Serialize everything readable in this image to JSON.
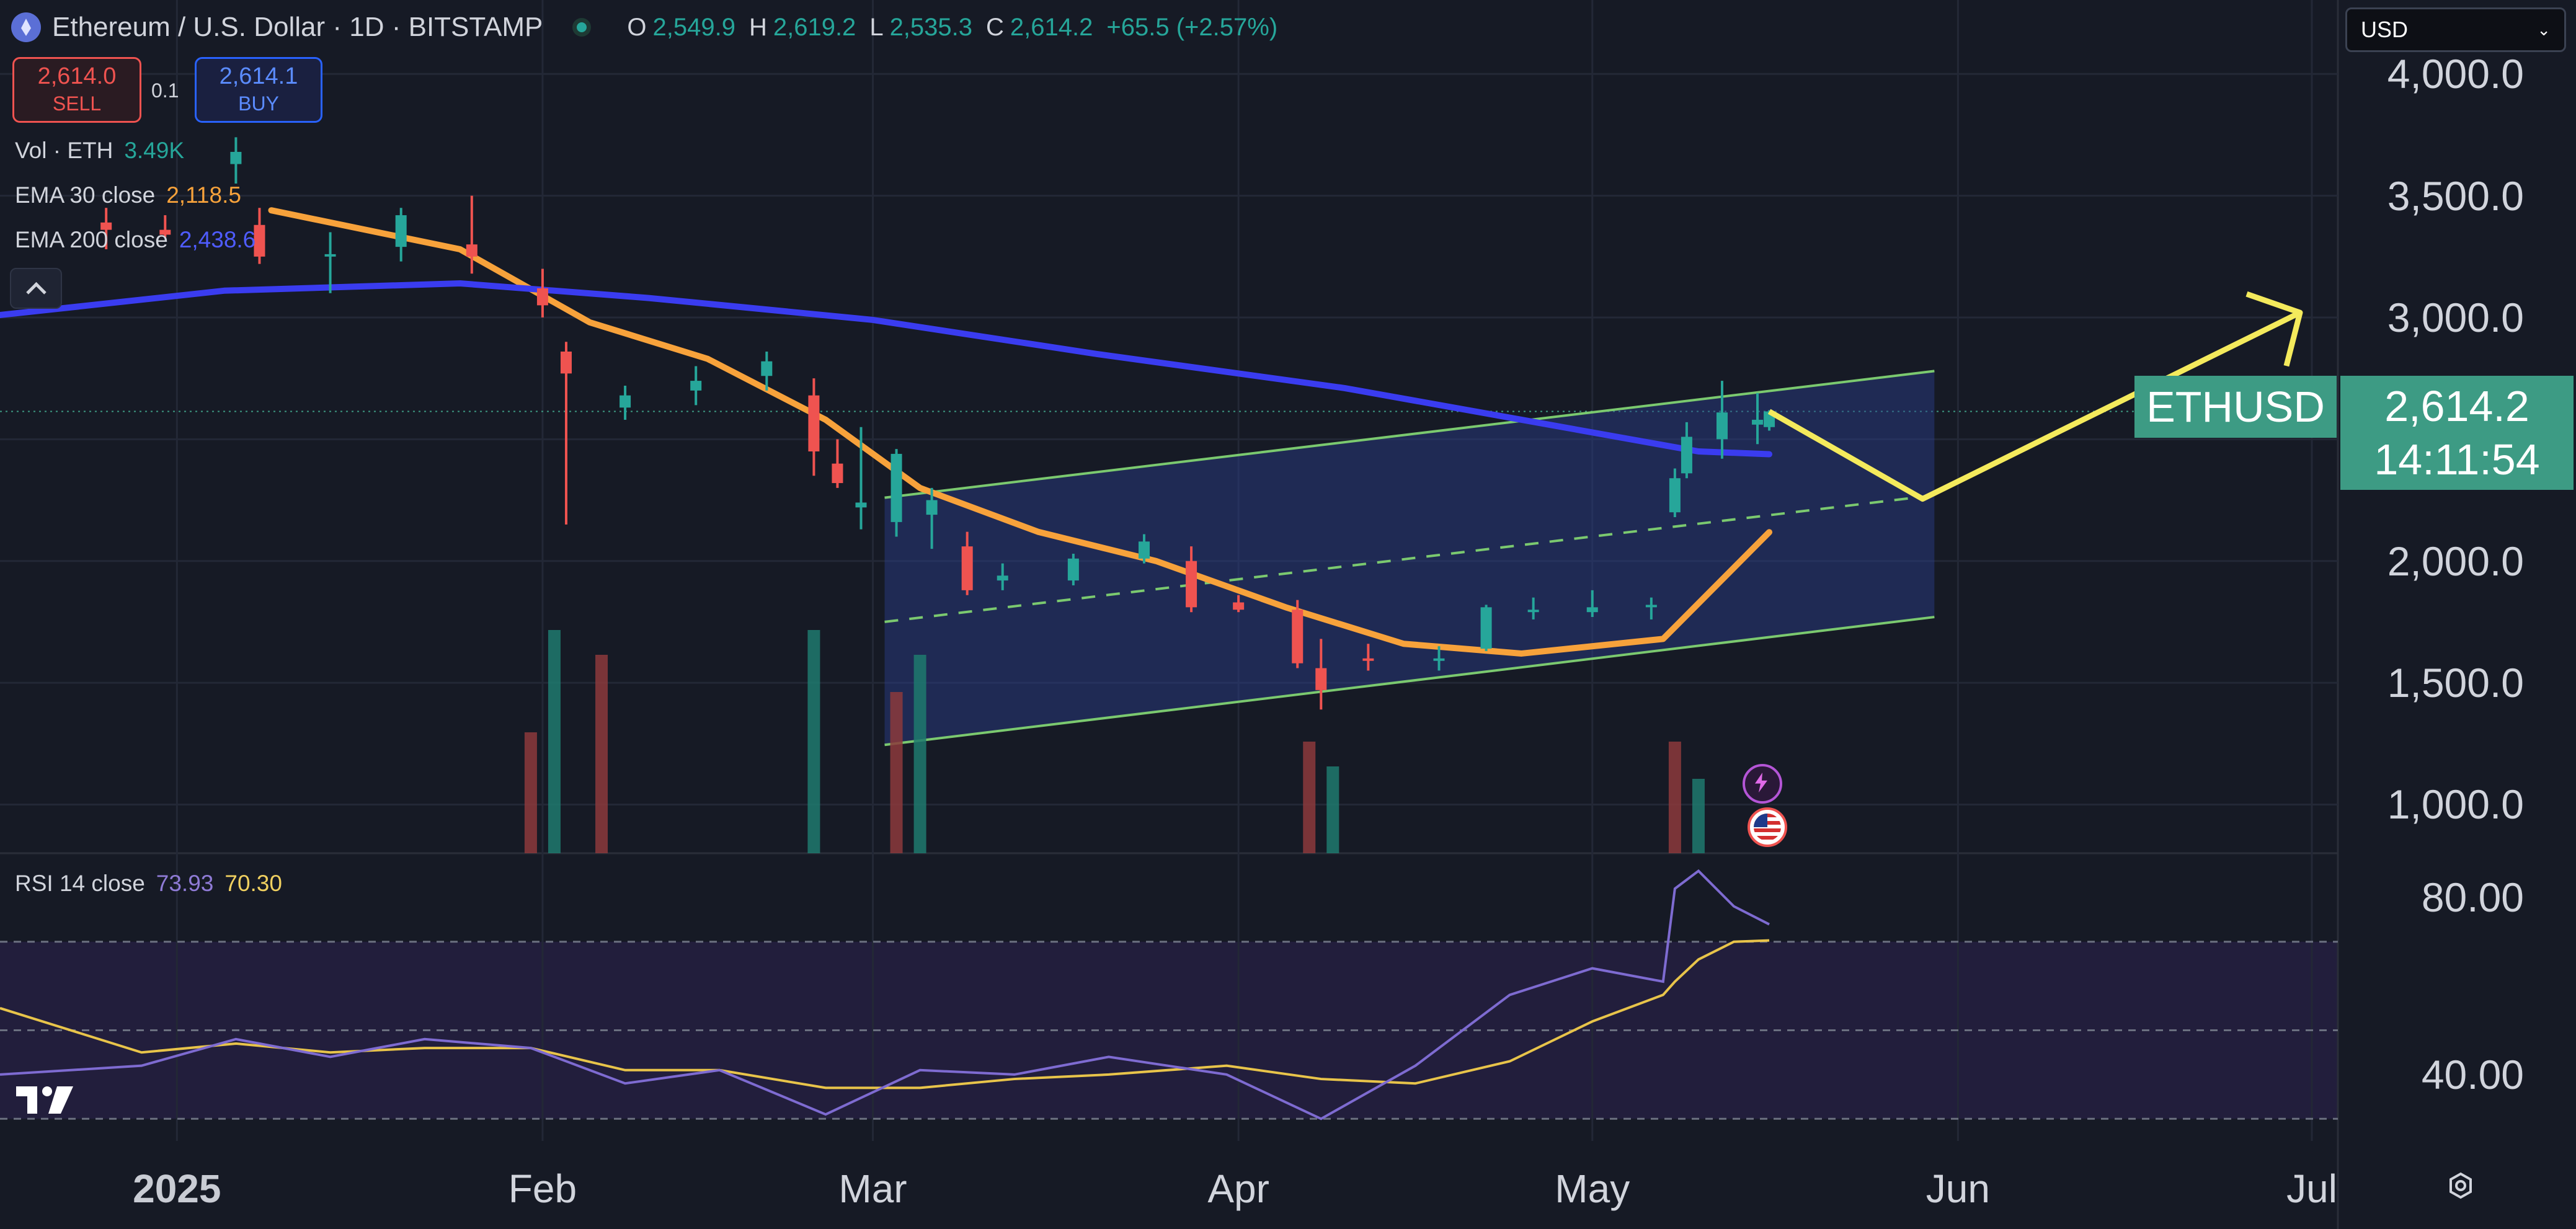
{
  "header": {
    "symbol": "Ethereum / U.S. Dollar · 1D · BITSTAMP",
    "o_label": "O",
    "o": "2,549.9",
    "h_label": "H",
    "h": "2,619.2",
    "l_label": "L",
    "l": "2,535.3",
    "c_label": "C",
    "c": "2,614.2",
    "change": "+65.5 (+2.57%)"
  },
  "trade": {
    "sell_price": "2,614.0",
    "sell_label": "SELL",
    "quantity": "0.1",
    "buy_price": "2,614.1",
    "buy_label": "BUY"
  },
  "indicators": {
    "vol_label": "Vol · ETH",
    "vol_value": "3.49K",
    "ema30_label": "EMA 30 close",
    "ema30_value": "2,118.5",
    "ema200_label": "EMA 200 close",
    "ema200_value": "2,438.6",
    "rsi_label": "RSI 14 close",
    "rsi_value": "73.93",
    "rsi_ma_value": "70.30"
  },
  "currency_select": "USD",
  "price_tag": {
    "symbol": "ETHUSD",
    "price": "2,614.2",
    "countdown": "14:11:54"
  },
  "colors": {
    "background": "#161a25",
    "up": "#26a69a",
    "down": "#ef5350",
    "ema30": "#f7a23b",
    "ema200": "#3a3cf0",
    "channel": "#7bc96f",
    "projection": "#f4ea5c",
    "rsi": "#7e6bd1",
    "rsi_ma": "#e8c44a"
  },
  "chart_data": {
    "type": "candlestick",
    "title": "Ethereum / U.S. Dollar · 1D · BITSTAMP",
    "price_axis": {
      "ticks": [
        "4,000.0",
        "3,500.0",
        "3,000.0",
        "2,000.0",
        "1,500.0",
        "1,000.0"
      ],
      "tick_values": [
        4000,
        3500,
        3000,
        2000,
        1500,
        1000
      ],
      "range": [
        800,
        4100
      ]
    },
    "time_axis": {
      "ticks": [
        "2025",
        "Feb",
        "Mar",
        "Apr",
        "May",
        "Jun",
        "Jul"
      ],
      "tick_dates": [
        "2025-01-01",
        "2025-02-01",
        "2025-03-01",
        "2025-04-01",
        "2025-05-01",
        "2025-06-01",
        "2025-07-01"
      ],
      "range": [
        "2024-12-17",
        "2025-07-01"
      ]
    },
    "last_price": 2614.2,
    "candles": {
      "dates": [
        "2024-12-26",
        "2024-12-31",
        "2025-01-06",
        "2025-01-08",
        "2025-01-14",
        "2025-01-20",
        "2025-01-26",
        "2025-02-01",
        "2025-02-03",
        "2025-02-08",
        "2025-02-14",
        "2025-02-20",
        "2025-02-24",
        "2025-02-26",
        "2025-02-28",
        "2025-03-03",
        "2025-03-06",
        "2025-03-09",
        "2025-03-12",
        "2025-03-18",
        "2025-03-24",
        "2025-03-28",
        "2025-04-01",
        "2025-04-06",
        "2025-04-08",
        "2025-04-12",
        "2025-04-18",
        "2025-04-22",
        "2025-04-26",
        "2025-05-01",
        "2025-05-06",
        "2025-05-08",
        "2025-05-09",
        "2025-05-12",
        "2025-05-15",
        "2025-05-16"
      ],
      "open": [
        3390,
        3360,
        3630,
        3380,
        3250,
        3290,
        3300,
        3120,
        2860,
        2630,
        2700,
        2760,
        2680,
        2400,
        2220,
        2160,
        2190,
        2060,
        1920,
        1920,
        2010,
        2000,
        1830,
        1800,
        1560,
        1600,
        1590,
        1640,
        1790,
        1790,
        1810,
        2200,
        2360,
        2500,
        2560,
        2549.9
      ],
      "high": [
        3450,
        3420,
        3740,
        3450,
        3350,
        3450,
        3500,
        3200,
        2900,
        2720,
        2800,
        2860,
        2750,
        2500,
        2550,
        2460,
        2300,
        2120,
        1990,
        2030,
        2110,
        2060,
        1860,
        1840,
        1680,
        1660,
        1650,
        1820,
        1850,
        1880,
        1850,
        2380,
        2570,
        2740,
        2690,
        2619.2
      ],
      "low": [
        3280,
        3330,
        3550,
        3220,
        3100,
        3230,
        3180,
        3000,
        2150,
        2580,
        2640,
        2700,
        2350,
        2300,
        2130,
        2100,
        2050,
        1860,
        1880,
        1900,
        1990,
        1790,
        1790,
        1560,
        1390,
        1550,
        1550,
        1630,
        1760,
        1770,
        1760,
        2180,
        2340,
        2420,
        2480,
        2535.3
      ],
      "close": [
        3360,
        3340,
        3680,
        3250,
        3260,
        3420,
        3250,
        3050,
        2770,
        2680,
        2740,
        2820,
        2450,
        2320,
        2240,
        2440,
        2250,
        1880,
        1940,
        2010,
        2080,
        1810,
        1800,
        1580,
        1470,
        1590,
        1600,
        1810,
        1800,
        1810,
        1820,
        2340,
        2510,
        2610,
        2580,
        2614.2
      ]
    },
    "series": [
      {
        "name": "EMA 30 close",
        "x": [
          "2025-01-09",
          "2025-01-25",
          "2025-02-05",
          "2025-02-15",
          "2025-02-25",
          "2025-03-05",
          "2025-03-15",
          "2025-03-25",
          "2025-04-05",
          "2025-04-15",
          "2025-04-25",
          "2025-05-07",
          "2025-05-16"
        ],
        "y": [
          3440,
          3280,
          2980,
          2830,
          2580,
          2300,
          2120,
          2000,
          1810,
          1660,
          1620,
          1680,
          2118.5
        ]
      },
      {
        "name": "EMA 200 close",
        "x": [
          "2024-12-17",
          "2025-01-05",
          "2025-01-25",
          "2025-02-10",
          "2025-03-01",
          "2025-03-20",
          "2025-04-10",
          "2025-04-25",
          "2025-05-10",
          "2025-05-16"
        ],
        "y": [
          3010,
          3110,
          3140,
          3080,
          2990,
          2850,
          2710,
          2580,
          2450,
          2438.6
        ]
      }
    ],
    "volume": {
      "label": "Vol · ETH",
      "last": "3.49K",
      "dates": [
        "2025-01-31",
        "2025-02-02",
        "2025-02-06",
        "2025-02-24",
        "2025-03-03",
        "2025-03-05",
        "2025-04-07",
        "2025-04-09",
        "2025-05-08",
        "2025-05-10"
      ],
      "values": [
        1.95,
        3.6,
        3.2,
        3.6,
        2.6,
        3.2,
        1.8,
        1.4,
        1.8,
        1.2
      ]
    },
    "rsi": {
      "label": "RSI 14 close",
      "value": 73.93,
      "ma_value": 70.3,
      "ticks": [
        "80.00",
        "40.00"
      ],
      "tick_values": [
        80,
        40
      ],
      "range": [
        25,
        90
      ],
      "bands": [
        30,
        50,
        70
      ],
      "dates": [
        "2024-12-17",
        "2024-12-29",
        "2025-01-06",
        "2025-01-14",
        "2025-01-22",
        "2025-01-31",
        "2025-02-08",
        "2025-02-16",
        "2025-02-25",
        "2025-03-05",
        "2025-03-13",
        "2025-03-21",
        "2025-03-31",
        "2025-04-08",
        "2025-04-16",
        "2025-04-24",
        "2025-05-01",
        "2025-05-07",
        "2025-05-08",
        "2025-05-10",
        "2025-05-13",
        "2025-05-16"
      ],
      "values": [
        40,
        42,
        48,
        44,
        48,
        46,
        38,
        41,
        31,
        41,
        40,
        44,
        40,
        30,
        42,
        58,
        64,
        61,
        82,
        86,
        78,
        73.93
      ],
      "ma": [
        55,
        45,
        47,
        45,
        46,
        46,
        41,
        41,
        37,
        37,
        39,
        40,
        42,
        39,
        38,
        43,
        52,
        58,
        61,
        66,
        70,
        70.3
      ]
    },
    "channel": {
      "start": "2025-03-02",
      "end": "2025-05-30",
      "upper": [
        2260,
        2780
      ],
      "middle": [
        1750,
        2270
      ],
      "lower": [
        1245,
        1770
      ]
    },
    "projection": {
      "dates": [
        "2025-05-16",
        "2025-05-29",
        "2025-06-30"
      ],
      "values": [
        2614,
        2255,
        3020
      ]
    }
  }
}
